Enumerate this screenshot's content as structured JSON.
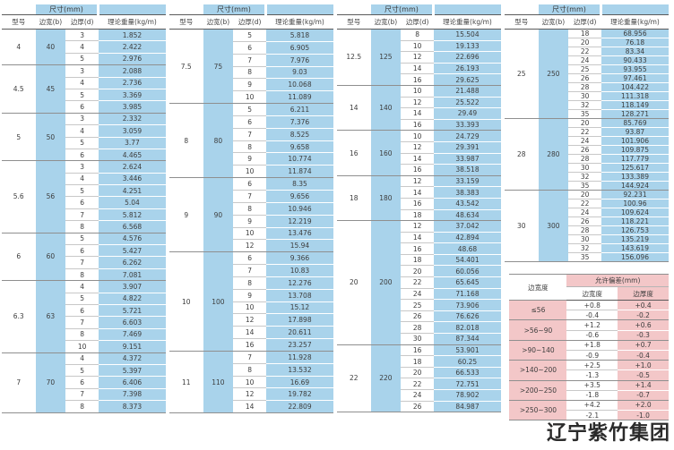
{
  "brand": "辽宁紫竹集团",
  "colors": {
    "table_blue": "#a9d3eb",
    "table_pink": "#f3c7c8",
    "text": "#3d3d3d"
  },
  "table_headers": {
    "size": "尺寸(mm)",
    "model": "型号",
    "width": "边宽(b)",
    "thickness": "边厚(d)",
    "weight": "理论重量(kg/m)"
  },
  "size_tables": [
    {
      "groups": [
        {
          "model": "4",
          "width": "40",
          "rows": [
            [
              "3",
              "1.852"
            ],
            [
              "4",
              "2.422"
            ],
            [
              "5",
              "2.976"
            ]
          ]
        },
        {
          "model": "4.5",
          "width": "45",
          "rows": [
            [
              "3",
              "2.088"
            ],
            [
              "4",
              "2.736"
            ],
            [
              "5",
              "3.369"
            ],
            [
              "6",
              "3.985"
            ]
          ]
        },
        {
          "model": "5",
          "width": "50",
          "rows": [
            [
              "3",
              "2.332"
            ],
            [
              "4",
              "3.059"
            ],
            [
              "5",
              "3.77"
            ],
            [
              "6",
              "4.465"
            ]
          ]
        },
        {
          "model": "5.6",
          "width": "56",
          "rows": [
            [
              "3",
              "2.624"
            ],
            [
              "4",
              "3.446"
            ],
            [
              "5",
              "4.251"
            ],
            [
              "6",
              "5.04"
            ],
            [
              "7",
              "5.812"
            ],
            [
              "8",
              "6.568"
            ]
          ]
        },
        {
          "model": "6",
          "width": "60",
          "rows": [
            [
              "5",
              "4.576"
            ],
            [
              "6",
              "5.427"
            ],
            [
              "7",
              "6.262"
            ],
            [
              "8",
              "7.081"
            ]
          ]
        },
        {
          "model": "6.3",
          "width": "63",
          "rows": [
            [
              "4",
              "3.907"
            ],
            [
              "5",
              "4.822"
            ],
            [
              "6",
              "5.721"
            ],
            [
              "7",
              "6.603"
            ],
            [
              "8",
              "7.469"
            ],
            [
              "10",
              "9.151"
            ]
          ]
        },
        {
          "model": "7",
          "width": "70",
          "rows": [
            [
              "4",
              "4.372"
            ],
            [
              "5",
              "5.397"
            ],
            [
              "6",
              "6.406"
            ],
            [
              "7",
              "7.398"
            ],
            [
              "8",
              "8.373"
            ]
          ]
        }
      ]
    },
    {
      "groups": [
        {
          "model": "7.5",
          "width": "75",
          "rows": [
            [
              "5",
              "5.818"
            ],
            [
              "6",
              "6.905"
            ],
            [
              "7",
              "7.976"
            ],
            [
              "8",
              "9.03"
            ],
            [
              "9",
              "10.068"
            ],
            [
              "10",
              "11.089"
            ]
          ]
        },
        {
          "model": "8",
          "width": "80",
          "rows": [
            [
              "5",
              "6.211"
            ],
            [
              "6",
              "7.376"
            ],
            [
              "7",
              "8.525"
            ],
            [
              "8",
              "9.658"
            ],
            [
              "9",
              "10.774"
            ],
            [
              "10",
              "11.874"
            ]
          ]
        },
        {
          "model": "9",
          "width": "90",
          "rows": [
            [
              "6",
              "8.35"
            ],
            [
              "7",
              "9.656"
            ],
            [
              "8",
              "10.946"
            ],
            [
              "9",
              "12.219"
            ],
            [
              "10",
              "13.476"
            ],
            [
              "12",
              "15.94"
            ]
          ]
        },
        {
          "model": "10",
          "width": "100",
          "rows": [
            [
              "6",
              "9.366"
            ],
            [
              "7",
              "10.83"
            ],
            [
              "8",
              "12.276"
            ],
            [
              "9",
              "13.708"
            ],
            [
              "10",
              "15.12"
            ],
            [
              "12",
              "17.898"
            ],
            [
              "14",
              "20.611"
            ],
            [
              "16",
              "23.257"
            ]
          ]
        },
        {
          "model": "11",
          "width": "110",
          "rows": [
            [
              "7",
              "11.928"
            ],
            [
              "8",
              "13.532"
            ],
            [
              "10",
              "16.69"
            ],
            [
              "12",
              "19.782"
            ],
            [
              "14",
              "22.809"
            ]
          ]
        }
      ]
    },
    {
      "groups": [
        {
          "model": "12.5",
          "width": "125",
          "rows": [
            [
              "8",
              "15.504"
            ],
            [
              "10",
              "19.133"
            ],
            [
              "12",
              "22.696"
            ],
            [
              "14",
              "26.193"
            ],
            [
              "16",
              "29.625"
            ]
          ]
        },
        {
          "model": "14",
          "width": "140",
          "rows": [
            [
              "10",
              "21.488"
            ],
            [
              "12",
              "25.522"
            ],
            [
              "14",
              "29.49"
            ],
            [
              "16",
              "33.393"
            ]
          ]
        },
        {
          "model": "16",
          "width": "160",
          "rows": [
            [
              "10",
              "24.729"
            ],
            [
              "12",
              "29.391"
            ],
            [
              "14",
              "33.987"
            ],
            [
              "16",
              "38.518"
            ]
          ]
        },
        {
          "model": "18",
          "width": "180",
          "rows": [
            [
              "12",
              "33.159"
            ],
            [
              "14",
              "38.383"
            ],
            [
              "16",
              "43.542"
            ],
            [
              "18",
              "48.634"
            ]
          ]
        },
        {
          "model": "20",
          "width": "200",
          "rows": [
            [
              "12",
              "37.042"
            ],
            [
              "14",
              "42.894"
            ],
            [
              "16",
              "48.68"
            ],
            [
              "18",
              "54.401"
            ],
            [
              "20",
              "60.056"
            ],
            [
              "22",
              "65.645"
            ],
            [
              "24",
              "71.168"
            ],
            [
              "25",
              "73.906"
            ],
            [
              "26",
              "76.626"
            ],
            [
              "28",
              "82.018"
            ],
            [
              "30",
              "87.344"
            ]
          ]
        },
        {
          "model": "22",
          "width": "220",
          "rows": [
            [
              "16",
              "53.901"
            ],
            [
              "18",
              "60.25"
            ],
            [
              "20",
              "66.533"
            ],
            [
              "22",
              "72.751"
            ],
            [
              "24",
              "78.902"
            ],
            [
              "26",
              "84.987"
            ]
          ]
        }
      ]
    },
    {
      "groups": [
        {
          "model": "25",
          "width": "250",
          "rows": [
            [
              "18",
              "68.956"
            ],
            [
              "20",
              "76.18"
            ],
            [
              "22",
              "83.34"
            ],
            [
              "24",
              "90.433"
            ],
            [
              "25",
              "93.955"
            ],
            [
              "26",
              "97.461"
            ],
            [
              "28",
              "104.422"
            ],
            [
              "30",
              "111.318"
            ],
            [
              "32",
              "118.149"
            ],
            [
              "35",
              "128.271"
            ]
          ]
        },
        {
          "model": "28",
          "width": "280",
          "rows": [
            [
              "20",
              "85.769"
            ],
            [
              "22",
              "93.87"
            ],
            [
              "24",
              "101.906"
            ],
            [
              "26",
              "109.875"
            ],
            [
              "28",
              "117.779"
            ],
            [
              "30",
              "125.617"
            ],
            [
              "32",
              "133.389"
            ],
            [
              "35",
              "144.924"
            ]
          ]
        },
        {
          "model": "30",
          "width": "300",
          "rows": [
            [
              "20",
              "92.231"
            ],
            [
              "22",
              "100.96"
            ],
            [
              "24",
              "109.624"
            ],
            [
              "26",
              "118.221"
            ],
            [
              "28",
              "126.753"
            ],
            [
              "30",
              "135.219"
            ],
            [
              "32",
              "143.619"
            ],
            [
              "35",
              "156.096"
            ]
          ]
        }
      ]
    }
  ],
  "tolerance_table": {
    "row_header": "边宽度",
    "span_header": "允许偏差(mm)",
    "col_headers": [
      "边宽度",
      "边厚度"
    ],
    "groups": [
      {
        "range": "≤56",
        "rows": [
          [
            "+0.8",
            "+0.4"
          ],
          [
            "-0.4",
            "-0.2"
          ]
        ]
      },
      {
        "range": ">56~90",
        "rows": [
          [
            "+1.2",
            "+0.6"
          ],
          [
            "-0.6",
            "-0.3"
          ]
        ]
      },
      {
        "range": ">90~140",
        "rows": [
          [
            "+1.8",
            "+0.7"
          ],
          [
            "-0.9",
            "-0.4"
          ]
        ]
      },
      {
        "range": ">140~200",
        "rows": [
          [
            "+2.5",
            "+1.0"
          ],
          [
            "-1.3",
            "-0.5"
          ]
        ]
      },
      {
        "range": ">200~250",
        "rows": [
          [
            "+3.5",
            "+1.4"
          ],
          [
            "-1.8",
            "-0.7"
          ]
        ]
      },
      {
        "range": ">250~300",
        "rows": [
          [
            "+4.2",
            "+2.0"
          ],
          [
            "-2.1",
            "-1.0"
          ]
        ]
      }
    ]
  }
}
